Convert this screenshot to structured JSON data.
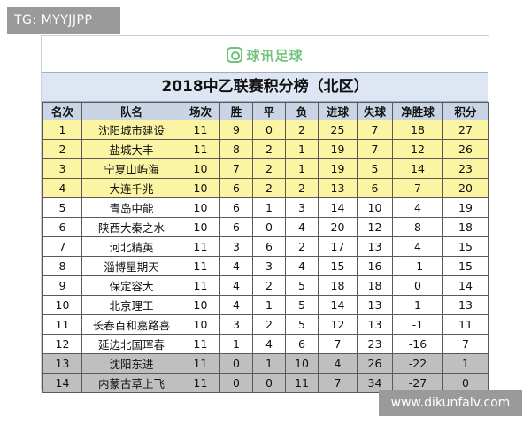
{
  "tag": "TG: MYYJJPP",
  "url": "www.dikunfalv.com",
  "brand": {
    "text": "球讯足球",
    "icon": "chat-bubble-icon",
    "color": "#6ec27a"
  },
  "title": "2018中乙联赛积分榜（北区）",
  "headers": [
    "名次",
    "队名",
    "场次",
    "胜",
    "平",
    "负",
    "进球",
    "失球",
    "净胜球",
    "积分"
  ],
  "colors": {
    "promotion_rows": "#fbf5a3",
    "relegation_rows": "#bfbfbf",
    "header": "#c9d4e4",
    "title_bg": "#dde6f2"
  },
  "rows": [
    [
      "1",
      "沈阳城市建设",
      "11",
      "9",
      "0",
      "2",
      "25",
      "7",
      "18",
      "27"
    ],
    [
      "2",
      "盐城大丰",
      "11",
      "8",
      "2",
      "1",
      "19",
      "7",
      "12",
      "26"
    ],
    [
      "3",
      "宁夏山屿海",
      "10",
      "7",
      "2",
      "1",
      "19",
      "5",
      "14",
      "23"
    ],
    [
      "4",
      "大连千兆",
      "10",
      "6",
      "2",
      "2",
      "13",
      "6",
      "7",
      "20"
    ],
    [
      "5",
      "青岛中能",
      "10",
      "6",
      "1",
      "3",
      "14",
      "10",
      "4",
      "19"
    ],
    [
      "6",
      "陕西大秦之水",
      "10",
      "6",
      "0",
      "4",
      "20",
      "12",
      "8",
      "18"
    ],
    [
      "7",
      "河北精英",
      "11",
      "3",
      "6",
      "2",
      "17",
      "13",
      "4",
      "15"
    ],
    [
      "8",
      "淄博星期天",
      "11",
      "4",
      "3",
      "4",
      "15",
      "16",
      "-1",
      "15"
    ],
    [
      "9",
      "保定容大",
      "11",
      "4",
      "2",
      "5",
      "18",
      "18",
      "0",
      "14"
    ],
    [
      "10",
      "北京理工",
      "10",
      "4",
      "1",
      "5",
      "14",
      "13",
      "1",
      "13"
    ],
    [
      "11",
      "长春百和嘉路喜",
      "10",
      "3",
      "2",
      "5",
      "12",
      "13",
      "-1",
      "11"
    ],
    [
      "12",
      "延边北国珲春",
      "11",
      "1",
      "4",
      "6",
      "7",
      "23",
      "-16",
      "7"
    ],
    [
      "13",
      "沈阳东进",
      "11",
      "0",
      "1",
      "10",
      "4",
      "26",
      "-22",
      "1"
    ],
    [
      "14",
      "内蒙古草上飞",
      "11",
      "0",
      "0",
      "11",
      "7",
      "34",
      "-27",
      "0"
    ]
  ]
}
